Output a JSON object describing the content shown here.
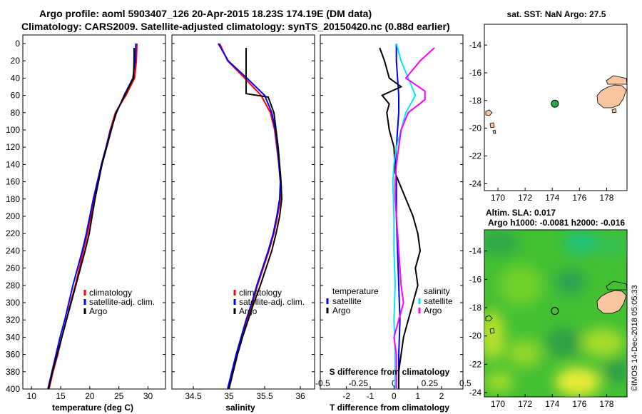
{
  "title": {
    "line1": "Argo profile: aoml 5903407_126 20-Apr-2015 18.23S 174.19E (DM data)",
    "line2": "Climatology: CARS2009. Satellite-adjusted climatology: synTS_20150420.nc (0.88d earlier)"
  },
  "stamp": "©IMOS 14-Dec-2018 05:05:33",
  "colors": {
    "red": "#ff0000",
    "blue": "#0000ff",
    "black": "#000000",
    "cyan": "#00e5ff",
    "magenta": "#ff00ff",
    "land": "#f7c59f",
    "float": "#22aa44"
  },
  "chart_data": [
    {
      "id": "temperature",
      "type": "line",
      "xlabel": "temperature (deg C)",
      "ylabel": "",
      "xlim": [
        8.5,
        33
      ],
      "ylim": [
        400,
        0
      ],
      "xticks": [
        10,
        15,
        20,
        25,
        30
      ],
      "yticks": [
        0,
        20,
        40,
        60,
        80,
        100,
        120,
        140,
        160,
        180,
        200,
        220,
        240,
        260,
        280,
        300,
        320,
        340,
        360,
        380,
        400
      ],
      "legend": {
        "position": "lower-right",
        "items": [
          "climatology",
          "satellite-adj. clim.",
          "Argo"
        ]
      },
      "series": [
        {
          "name": "climatology",
          "color": "red",
          "depth": [
            0,
            20,
            40,
            60,
            80,
            100,
            120,
            140,
            160,
            180,
            200,
            220,
            240,
            260,
            280,
            300,
            320,
            340,
            360,
            380,
            400
          ],
          "values": [
            28.1,
            28.0,
            27.7,
            26.2,
            24.4,
            23.5,
            22.8,
            22.0,
            21.3,
            20.7,
            20.2,
            19.6,
            18.9,
            18.2,
            17.5,
            16.7,
            16.0,
            15.2,
            14.5,
            13.7,
            13.0
          ]
        },
        {
          "name": "satellite-adj. clim.",
          "color": "blue",
          "depth": [
            0,
            20,
            40,
            60,
            80,
            100,
            120,
            140,
            160,
            180,
            200,
            220,
            240,
            260,
            280,
            300,
            320,
            340,
            360,
            380,
            400
          ],
          "values": [
            27.9,
            27.8,
            27.4,
            25.9,
            24.6,
            23.6,
            22.8,
            22.0,
            21.3,
            20.6,
            20.0,
            19.4,
            18.7,
            17.9,
            17.1,
            16.4,
            15.7,
            14.9,
            14.2,
            13.5,
            12.8
          ]
        },
        {
          "name": "Argo",
          "color": "black",
          "depth": [
            5,
            20,
            40,
            60,
            80,
            100,
            120,
            140,
            160,
            180,
            200,
            220,
            240,
            260,
            280,
            300,
            320,
            340,
            360,
            380,
            400
          ],
          "values": [
            27.6,
            27.6,
            27.5,
            26.0,
            24.5,
            23.7,
            22.9,
            22.1,
            21.5,
            20.9,
            20.4,
            19.9,
            19.2,
            18.4,
            17.6,
            16.8,
            16.0,
            15.2,
            14.4,
            13.6,
            12.9
          ]
        }
      ]
    },
    {
      "id": "salinity",
      "type": "line",
      "xlabel": "salinity",
      "xlim": [
        34.2,
        36.2
      ],
      "ylim": [
        400,
        0
      ],
      "xticks": [
        34.5,
        35,
        35.5,
        36
      ],
      "yticks": [
        0,
        20,
        40,
        60,
        80,
        100,
        120,
        140,
        160,
        180,
        200,
        220,
        240,
        260,
        280,
        300,
        320,
        340,
        360,
        380,
        400
      ],
      "legend": {
        "position": "lower-right",
        "items": [
          "climatology",
          "satellite-adj. clim.",
          "Argo"
        ]
      },
      "series": [
        {
          "name": "climatology",
          "color": "red",
          "depth": [
            0,
            20,
            40,
            60,
            80,
            100,
            120,
            140,
            160,
            180,
            200,
            220,
            240,
            260,
            280,
            300,
            320,
            340,
            360,
            380,
            400
          ],
          "values": [
            34.87,
            34.98,
            35.22,
            35.45,
            35.58,
            35.64,
            35.67,
            35.7,
            35.72,
            35.72,
            35.68,
            35.63,
            35.56,
            35.48,
            35.4,
            35.33,
            35.26,
            35.18,
            35.11,
            35.05,
            34.99
          ]
        },
        {
          "name": "satellite-adj. clim.",
          "color": "blue",
          "depth": [
            0,
            20,
            40,
            60,
            80,
            100,
            120,
            140,
            160,
            180,
            200,
            220,
            240,
            260,
            280,
            300,
            320,
            340,
            360,
            380,
            400
          ],
          "values": [
            34.85,
            34.99,
            35.25,
            35.5,
            35.6,
            35.65,
            35.68,
            35.7,
            35.72,
            35.71,
            35.67,
            35.62,
            35.55,
            35.47,
            35.39,
            35.32,
            35.24,
            35.17,
            35.1,
            35.04,
            34.98
          ]
        },
        {
          "name": "Argo",
          "color": "black",
          "depth": [
            5,
            20,
            40,
            58,
            62,
            80,
            100,
            120,
            140,
            160,
            180,
            200,
            220,
            240,
            260,
            280,
            300,
            320,
            340,
            360,
            380,
            400
          ],
          "values": [
            35.24,
            35.24,
            35.24,
            35.24,
            35.55,
            35.63,
            35.66,
            35.69,
            35.71,
            35.73,
            35.74,
            35.71,
            35.66,
            35.6,
            35.52,
            35.44,
            35.35,
            35.27,
            35.19,
            35.12,
            35.06,
            35.0
          ]
        }
      ]
    },
    {
      "id": "differences",
      "type": "line",
      "xlabel": "T difference from climatology",
      "xlabel_top": "S difference from climatology",
      "xlim": [
        -3.1,
        2.9
      ],
      "ylim": [
        400,
        0
      ],
      "xticks": [
        -2,
        -1,
        0,
        1,
        2
      ],
      "xtick_labels_top": [
        "-0.5",
        "-0.25",
        "0",
        "0.25",
        "0.5"
      ],
      "xticks_top": [
        -3,
        -1.5,
        0,
        1.5,
        3
      ],
      "yticks": [
        0,
        20,
        40,
        60,
        80,
        100,
        120,
        140,
        160,
        180,
        200,
        220,
        240,
        260,
        280,
        300,
        320,
        340,
        360,
        380,
        400
      ],
      "legend": {
        "position": "lower",
        "temperature_header": "temperature",
        "salinity_header": "salinity",
        "items": [
          "satellite",
          "Argo",
          "satellite",
          "Argo"
        ]
      },
      "series": [
        {
          "name": "temperature satellite",
          "color": "blue",
          "depth": [
            0,
            20,
            40,
            60,
            80,
            100,
            120,
            140,
            160,
            180,
            200,
            240,
            280,
            320,
            360,
            400
          ],
          "values": [
            0.1,
            0.1,
            0.15,
            0.2,
            0.2,
            0.15,
            0.1,
            0.05,
            0.1,
            0.1,
            0.1,
            0.15,
            0.2,
            0.25,
            0.2,
            0.2
          ]
        },
        {
          "name": "temperature Argo",
          "color": "black",
          "depth": [
            5,
            20,
            40,
            50,
            60,
            70,
            80,
            100,
            120,
            150,
            160,
            180,
            200,
            220,
            240,
            260,
            280,
            300,
            320,
            340,
            360,
            380,
            400
          ],
          "values": [
            -0.6,
            -0.4,
            -0.2,
            0.3,
            -0.5,
            -0.2,
            -0.3,
            -0.2,
            0.0,
            0.05,
            0.2,
            0.5,
            0.8,
            1.0,
            1.1,
            0.9,
            1.0,
            0.8,
            0.6,
            0.4,
            0.3,
            0.2,
            0.2
          ]
        },
        {
          "name": "salinity satellite",
          "color": "cyan",
          "depth": [
            0,
            20,
            40,
            60,
            80,
            100,
            120,
            140,
            160,
            200,
            240,
            280,
            320,
            360,
            400
          ],
          "values": [
            0.1,
            0.3,
            0.6,
            0.9,
            0.5,
            0.3,
            0.1,
            0.0,
            -0.05,
            0.0,
            0.0,
            0.05,
            0.0,
            0.05,
            0.05
          ]
        },
        {
          "name": "salinity Argo",
          "color": "magenta",
          "depth": [
            5,
            20,
            40,
            55,
            65,
            80,
            100,
            120,
            140,
            160,
            180,
            200,
            240,
            280,
            300,
            320,
            340,
            360,
            380,
            400
          ],
          "values": [
            1.7,
            1.1,
            0.5,
            1.3,
            1.3,
            0.6,
            0.3,
            0.2,
            0.1,
            0.05,
            0.05,
            0.1,
            0.2,
            0.3,
            0.4,
            0.2,
            0.0,
            0.1,
            0.1,
            0.1
          ]
        }
      ]
    },
    {
      "id": "sst-map",
      "type": "map",
      "title": "sat. SST: NaN Argo: 27.5",
      "xlim": [
        169,
        179.5
      ],
      "ylim": [
        -24.5,
        -12.5
      ],
      "xticks": [
        170,
        172,
        174,
        176,
        178
      ],
      "yticks": [
        -14,
        -16,
        -18,
        -20,
        -22,
        -24
      ],
      "float_position": {
        "lon": 174.19,
        "lat": -18.23
      }
    },
    {
      "id": "sla-map",
      "type": "map",
      "title": "Altim. SLA: 0.017",
      "subtitle": "Argo h1000: -0.0081 h2000: -0.016",
      "xlim": [
        169,
        179.5
      ],
      "ylim": [
        -24.3,
        -12.5
      ],
      "xticks": [
        170,
        172,
        174,
        176,
        178
      ],
      "yticks": [
        -14,
        -16,
        -18,
        -20,
        -22,
        -24
      ],
      "float_position": {
        "lon": 174.19,
        "lat": -18.23
      }
    }
  ]
}
